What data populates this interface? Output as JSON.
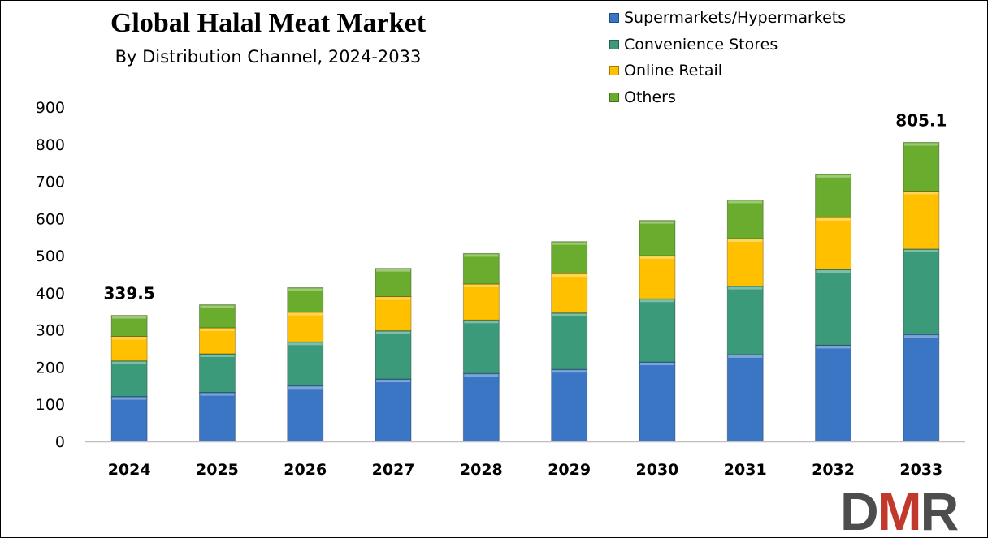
{
  "chart_data": {
    "type": "bar",
    "stacked": true,
    "title": "Global Halal Meat Market",
    "subtitle": "By Distribution Channel, 2024-2033",
    "categories": [
      "2024",
      "2025",
      "2026",
      "2027",
      "2028",
      "2029",
      "2030",
      "2031",
      "2032",
      "2033"
    ],
    "series": [
      {
        "name": "Supermarkets/Hypermarkets",
        "color": "#3a76c4",
        "values": [
          121,
          132,
          150,
          168,
          183,
          194,
          214,
          234,
          259,
          288
        ]
      },
      {
        "name": "Convenience Stores",
        "color": "#3a9a7a",
        "values": [
          96,
          104,
          118,
          130,
          144,
          152,
          170,
          184,
          204,
          230
        ]
      },
      {
        "name": "Online Retail",
        "color": "#ffc000",
        "values": [
          66,
          70,
          80,
          92,
          97,
          106,
          116,
          128,
          140,
          156
        ]
      },
      {
        "name": "Others",
        "color": "#6aad2e",
        "values": [
          56.5,
          62,
          66,
          76,
          82,
          86,
          95,
          104,
          116,
          131.1
        ]
      }
    ],
    "data_labels": [
      {
        "category": "2024",
        "text": "339.5"
      },
      {
        "category": "2033",
        "text": "805.1"
      }
    ],
    "ylim": [
      0,
      900
    ],
    "yticks": [
      "0",
      "100",
      "200",
      "300",
      "400",
      "500",
      "600",
      "700",
      "800",
      "900"
    ],
    "xlabel": "",
    "ylabel": "",
    "grid": false,
    "legend": "top-right"
  },
  "logo": {
    "text": "DMR"
  }
}
